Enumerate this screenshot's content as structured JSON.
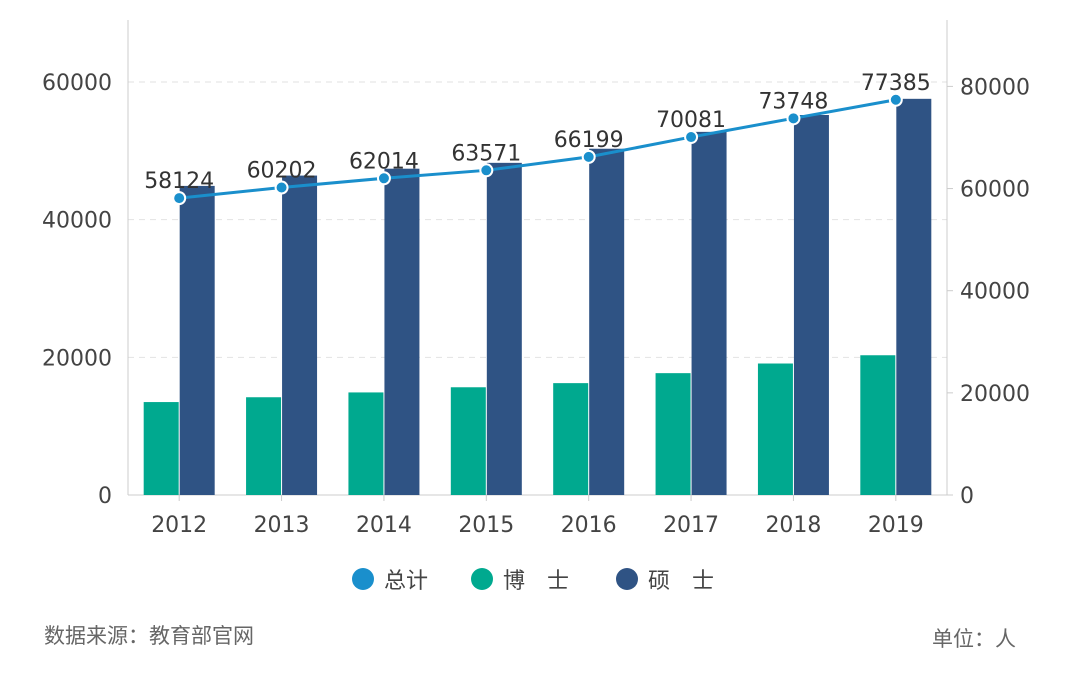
{
  "chart_data": {
    "type": "bar+line",
    "categories": [
      "2012",
      "2013",
      "2014",
      "2015",
      "2016",
      "2017",
      "2018",
      "2019"
    ],
    "series": [
      {
        "name": "博　士",
        "type": "bar",
        "axis": "left",
        "color": "#00a98f",
        "values": [
          13500,
          14200,
          14900,
          15650,
          16250,
          17700,
          19100,
          20300
        ]
      },
      {
        "name": "硕　士",
        "type": "bar",
        "axis": "left",
        "color": "#2f5384",
        "values": [
          44900,
          46400,
          47400,
          48250,
          50300,
          52750,
          55200,
          57550
        ]
      },
      {
        "name": "总计",
        "type": "line",
        "axis": "right",
        "color": "#1a8fcc",
        "values": [
          58124,
          60202,
          62014,
          63571,
          66199,
          70081,
          73748,
          77385
        ],
        "labels": [
          "58124",
          "60202",
          "62014",
          "63571",
          "66199",
          "70081",
          "73748",
          "77385"
        ]
      }
    ],
    "left_axis": {
      "ylim": [
        0,
        69000
      ],
      "ticks": [
        "0",
        "20000",
        "40000",
        "60000"
      ],
      "tick_values": [
        0,
        20000,
        40000,
        60000
      ]
    },
    "right_axis": {
      "ylim": [
        0,
        93000
      ],
      "ticks": [
        "0",
        "20000",
        "40000",
        "60000",
        "80000"
      ],
      "tick_values": [
        0,
        20000,
        40000,
        60000,
        80000
      ]
    },
    "grid": "horizontal dashed",
    "legend_placement": "bottom",
    "legend": [
      "总计",
      "博　士",
      "硕　士"
    ]
  },
  "footer": {
    "source": "数据来源：教育部官网",
    "unit": "单位：人"
  }
}
